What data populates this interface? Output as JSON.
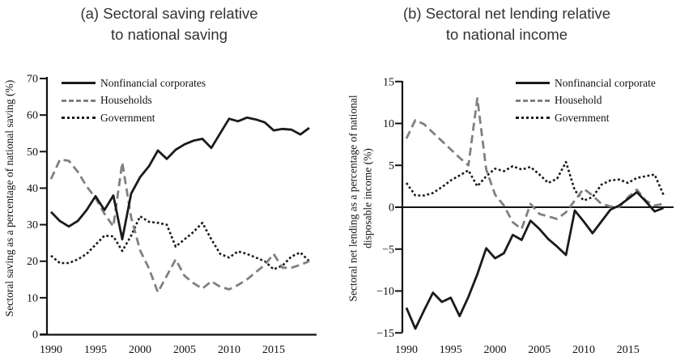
{
  "figure": {
    "background": "#ffffff",
    "text_color": "#111111",
    "title_color": "#333333"
  },
  "chart_data": [
    {
      "panel": "a",
      "type": "line",
      "title_lines": [
        "(a) Sectoral saving relative",
        "to national saving"
      ],
      "ylabel_lines": [
        "Sectoral saving as a percentage of national saving (%)"
      ],
      "x": [
        1990,
        1991,
        1992,
        1993,
        1994,
        1995,
        1996,
        1997,
        1998,
        1999,
        2000,
        2001,
        2002,
        2003,
        2004,
        2005,
        2006,
        2007,
        2008,
        2009,
        2010,
        2011,
        2012,
        2013,
        2014,
        2015,
        2016,
        2017,
        2018,
        2019
      ],
      "x_ticks": [
        1990,
        1995,
        2000,
        2005,
        2010,
        2015
      ],
      "y_ticks": [
        0,
        10,
        20,
        30,
        40,
        50,
        60,
        70
      ],
      "ylim": [
        0,
        70
      ],
      "xlim": [
        1990,
        2019
      ],
      "grid": false,
      "legend_position": "top-left",
      "series": [
        {
          "name": "Nonfinancial corporates",
          "line_style": "solid",
          "color": "#1a1a1a",
          "values": [
            33.5,
            31,
            29.5,
            31,
            34,
            37.8,
            34,
            38,
            26,
            38.5,
            43,
            46,
            50.3,
            48,
            50.5,
            52,
            53,
            53.5,
            51,
            55,
            59,
            58.3,
            59.3,
            58.8,
            58,
            55.8,
            56.2,
            56,
            54.7,
            56.5
          ]
        },
        {
          "name": "Households",
          "line_style": "dashed",
          "color": "#808080",
          "values": [
            42.5,
            47.8,
            47.5,
            44.5,
            40.5,
            37.3,
            33,
            29.5,
            47,
            32,
            23,
            18,
            11.5,
            16,
            20.5,
            16,
            14,
            12.5,
            14.5,
            13,
            12.3,
            13.5,
            15,
            17,
            19,
            22,
            18.2,
            18.2,
            19,
            20
          ]
        },
        {
          "name": "Government",
          "line_style": "dotted",
          "color": "#1a1a1a",
          "values": [
            21.5,
            19.5,
            19.5,
            20.5,
            22,
            24.5,
            27,
            26.8,
            22.8,
            27,
            32.3,
            30.8,
            30.5,
            30,
            24,
            26,
            28,
            30.5,
            26,
            22,
            21,
            22.7,
            22,
            21,
            20,
            17.8,
            18.8,
            21.3,
            22.4,
            20
          ]
        }
      ]
    },
    {
      "panel": "b",
      "type": "line",
      "title_lines": [
        "(b) Sectoral net lending relative",
        "to national income"
      ],
      "ylabel_lines": [
        "Sectoral net lending as a percentage of national",
        "disposable income (%)"
      ],
      "x": [
        1990,
        1991,
        1992,
        1993,
        1994,
        1995,
        1996,
        1997,
        1998,
        1999,
        2000,
        2001,
        2002,
        2003,
        2004,
        2005,
        2006,
        2007,
        2008,
        2009,
        2010,
        2011,
        2012,
        2013,
        2014,
        2015,
        2016,
        2017,
        2018,
        2019
      ],
      "x_ticks": [
        1990,
        1995,
        2000,
        2005,
        2010,
        2015
      ],
      "y_ticks": [
        15,
        10,
        5,
        0,
        -5,
        -10,
        -15
      ],
      "ylim": [
        -15,
        15
      ],
      "xlim": [
        1990,
        2019
      ],
      "grid": false,
      "zero_line": true,
      "legend_position": "top-right",
      "series": [
        {
          "name": "Nonfinancial corporate",
          "line_style": "solid",
          "color": "#1a1a1a",
          "values": [
            -12,
            -14.5,
            -12.3,
            -10.2,
            -11.3,
            -10.8,
            -13,
            -10.7,
            -8,
            -4.9,
            -6.1,
            -5.5,
            -3.3,
            -3.9,
            -1.6,
            -2.6,
            -3.8,
            -4.7,
            -5.7,
            -0.4,
            -1.7,
            -3.1,
            -1.7,
            -0.3,
            0.2,
            1,
            1.8,
            0.7,
            -0.5,
            -0.1
          ]
        },
        {
          "name": "Household",
          "line_style": "dashed",
          "color": "#808080",
          "values": [
            8.2,
            10.4,
            9.9,
            8.9,
            7.9,
            6.9,
            5.9,
            5,
            13,
            4.5,
            1.5,
            0.2,
            -1.8,
            -2.6,
            0.4,
            -0.8,
            -1.1,
            -1.4,
            -0.6,
            0.8,
            2.2,
            1.4,
            0.4,
            0.1,
            0,
            1.2,
            2.1,
            0.8,
            0.2,
            0.4
          ]
        },
        {
          "name": "Government",
          "line_style": "dotted",
          "color": "#1a1a1a",
          "values": [
            2.9,
            1.4,
            1.4,
            1.7,
            2.4,
            3.2,
            3.8,
            4.4,
            2.5,
            3.7,
            4.6,
            4.3,
            4.9,
            4.5,
            4.8,
            3.9,
            2.9,
            3.4,
            5.4,
            2,
            0.8,
            1.2,
            2.7,
            3.2,
            3.3,
            2.9,
            3.5,
            3.7,
            3.9,
            1.5
          ]
        }
      ]
    }
  ]
}
